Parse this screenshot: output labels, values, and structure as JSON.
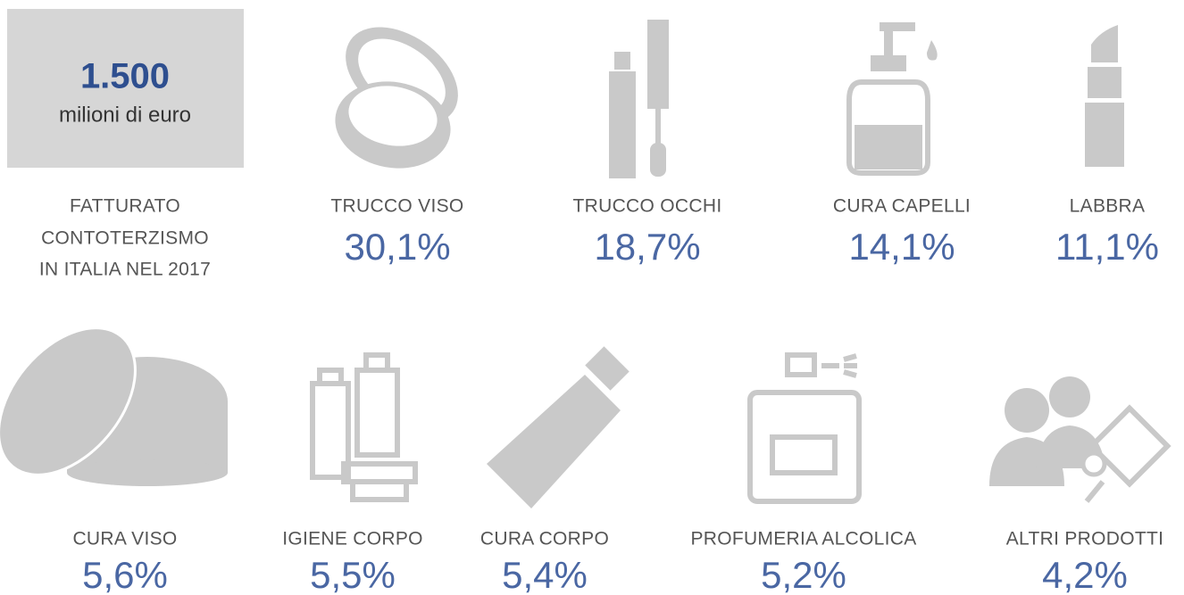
{
  "headline": {
    "value": "1.500",
    "unit": "milioni di euro",
    "caption": [
      "FATTURATO",
      "CONTOTERZISMO",
      "IN ITALIA NEL 2017"
    ]
  },
  "items": [
    {
      "label": "TRUCCO VISO",
      "value": "30,1%"
    },
    {
      "label": "TRUCCO OCCHI",
      "value": "18,7%"
    },
    {
      "label": "CURA CAPELLI",
      "value": "14,1%"
    },
    {
      "label": "LABBRA",
      "value": "11,1%"
    },
    {
      "label": "CURA VISO",
      "value": "5,6%"
    },
    {
      "label": "IGIENE CORPO",
      "value": "5,5%"
    },
    {
      "label": "CURA CORPO",
      "value": "5,4%"
    },
    {
      "label": "PROFUMERIA ALCOLICA",
      "value": "5,2%"
    },
    {
      "label": "ALTRI PRODOTTI",
      "value": "4,2%"
    }
  ]
}
